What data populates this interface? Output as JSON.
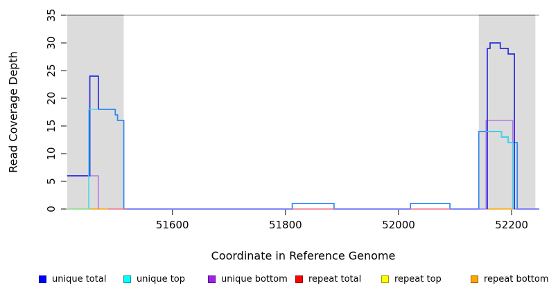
{
  "chart_data": {
    "type": "line",
    "step": true,
    "title": "",
    "xlabel": "Coordinate in Reference Genome",
    "ylabel": "Read Coverage Depth",
    "xlim": [
      51414,
      52249
    ],
    "ylim": [
      0,
      35
    ],
    "x_ticks": [
      51600,
      51800,
      52000,
      52200
    ],
    "y_ticks": [
      0,
      5,
      10,
      15,
      20,
      25,
      30,
      35
    ],
    "grid": false,
    "legend_position": "bottom",
    "plot_background": "#ffffff",
    "shaded_regions": [
      {
        "name": "left-gray-region",
        "x0": 51414,
        "x1": 51514,
        "color": "#dcdcdc"
      },
      {
        "name": "right-gray-region",
        "x0": 52142,
        "x1": 52242,
        "color": "#dcdcdc"
      }
    ],
    "top_border": {
      "light": "#b2b2b2",
      "dark": "#878787"
    },
    "tick_color": "#333333",
    "layers": [
      {
        "name": "total-outline",
        "color": "#2f86f0",
        "width": 1.7,
        "paths": [
          [
            [
              51469,
              18
            ],
            [
              51499,
              18
            ],
            [
              51499,
              17
            ],
            [
              51503,
              17
            ],
            [
              51503,
              16
            ],
            [
              51514,
              16
            ],
            [
              51514,
              0
            ],
            [
              51812,
              0
            ],
            [
              51812,
              1
            ],
            [
              51886,
              1
            ],
            [
              51886,
              0
            ],
            [
              52021,
              0
            ],
            [
              52021,
              1
            ],
            [
              52091,
              1
            ],
            [
              52091,
              0
            ],
            [
              52142,
              0
            ],
            [
              52142,
              14
            ],
            [
              52182,
              14
            ],
            [
              52182,
              13
            ],
            [
              52194,
              13
            ],
            [
              52194,
              12
            ],
            [
              52210,
              12
            ],
            [
              52210,
              0
            ],
            [
              52249,
              0
            ]
          ]
        ]
      },
      {
        "name": "baseline-mixed-left",
        "color": "#86d98a",
        "width": 1.5,
        "paths": [
          [
            [
              51414,
              0
            ],
            [
              51455,
              0
            ]
          ]
        ]
      },
      {
        "name": "baseline-repeat-bottom-left",
        "color": "#ffa500",
        "width": 1.5,
        "paths": [
          [
            [
              51455,
              0
            ],
            [
              51486,
              0
            ]
          ]
        ]
      },
      {
        "name": "baseline-repeat-total-left",
        "color": "#f0708a",
        "width": 1.5,
        "paths": [
          [
            [
              51486,
              0
            ],
            [
              51519,
              0
            ]
          ]
        ]
      },
      {
        "name": "baseline-zero-1",
        "color": "#8b7bfa",
        "width": 1.5,
        "paths": [
          [
            [
              51519,
              0
            ],
            [
              51812,
              0
            ]
          ]
        ]
      },
      {
        "name": "baseline-repeat-total-bump1",
        "color": "#f0708a",
        "width": 1.5,
        "paths": [
          [
            [
              51812,
              0
            ],
            [
              51886,
              0
            ]
          ]
        ]
      },
      {
        "name": "baseline-zero-2",
        "color": "#8b7bfa",
        "width": 1.5,
        "paths": [
          [
            [
              51886,
              0
            ],
            [
              52021,
              0
            ]
          ]
        ]
      },
      {
        "name": "baseline-repeat-total-bump2",
        "color": "#f0708a",
        "width": 1.5,
        "paths": [
          [
            [
              52021,
              0
            ],
            [
              52091,
              0
            ]
          ]
        ]
      },
      {
        "name": "baseline-zero-3",
        "color": "#8b7bfa",
        "width": 1.5,
        "paths": [
          [
            [
              52091,
              0
            ],
            [
              52158,
              0
            ]
          ]
        ]
      },
      {
        "name": "baseline-repeat-bottom-right",
        "color": "#ffa500",
        "width": 1.5,
        "paths": [
          [
            [
              52158,
              0
            ],
            [
              52204,
              0
            ]
          ]
        ]
      },
      {
        "name": "baseline-zero-4",
        "color": "#8b7bfa",
        "width": 1.5,
        "paths": [
          [
            [
              52204,
              0
            ],
            [
              52249,
              0
            ]
          ]
        ]
      },
      {
        "name": "unique-bottom",
        "color": "#b379ea",
        "width": 1.6,
        "paths": [
          [
            [
              51414,
              6
            ],
            [
              51469,
              6
            ],
            [
              51469,
              0
            ]
          ],
          [
            [
              52155,
              0
            ],
            [
              52155,
              16
            ],
            [
              52202,
              16
            ],
            [
              52202,
              0
            ]
          ]
        ]
      },
      {
        "name": "unique-total",
        "color": "#2b2bdf",
        "width": 1.7,
        "paths": [
          [
            [
              51414,
              6
            ],
            [
              51454,
              6
            ],
            [
              51454,
              24
            ],
            [
              51469,
              24
            ],
            [
              51469,
              18
            ]
          ],
          [
            [
              52157,
              0
            ],
            [
              52157,
              29
            ],
            [
              52162,
              29
            ],
            [
              52162,
              30
            ],
            [
              52180,
              30
            ],
            [
              52180,
              29
            ],
            [
              52194,
              29
            ],
            [
              52194,
              28
            ],
            [
              52205,
              28
            ],
            [
              52205,
              0
            ]
          ]
        ]
      },
      {
        "name": "unique-top",
        "color": "#3fdcec",
        "width": 1.6,
        "paths": [
          [
            [
              51452,
              0
            ],
            [
              51452,
              18
            ],
            [
              51469,
              18
            ]
          ],
          [
            [
              52156,
              14
            ],
            [
              52182,
              14
            ],
            [
              52182,
              13
            ],
            [
              52194,
              13
            ],
            [
              52194,
              12
            ],
            [
              52202,
              12
            ],
            [
              52202,
              0
            ]
          ]
        ]
      }
    ],
    "legend": [
      {
        "label": "unique total",
        "color": "#0000ff",
        "border": "#000099"
      },
      {
        "label": "unique top",
        "color": "#00ffff",
        "border": "#009999"
      },
      {
        "label": "unique bottom",
        "color": "#a020f0",
        "border": "#5a0d8c"
      },
      {
        "label": "repeat total",
        "color": "#ff0000",
        "border": "#990000"
      },
      {
        "label": "repeat top",
        "color": "#ffff00",
        "border": "#999900"
      },
      {
        "label": "repeat bottom",
        "color": "#ffa500",
        "border": "#996300"
      }
    ]
  }
}
